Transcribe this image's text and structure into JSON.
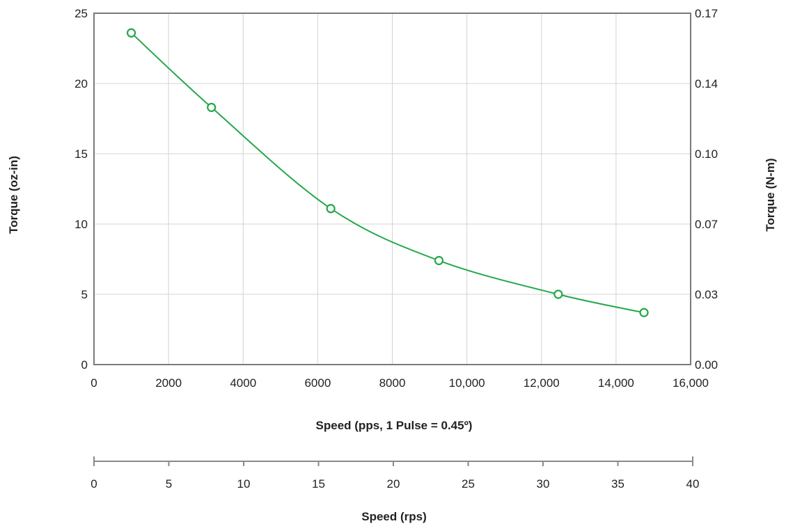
{
  "chart_data": {
    "type": "line",
    "xlabel": "Speed (pps, 1 Pulse = 0.45º)",
    "ylabel": "Torque (oz-in)",
    "ylabel_right": "Torque (N-m)",
    "xlim": [
      0,
      16000
    ],
    "ylim": [
      0,
      25
    ],
    "x_ticks": [
      "0",
      "2000",
      "4000",
      "6000",
      "8000",
      "10,000",
      "12,000",
      "14,000",
      "16,000"
    ],
    "y_ticks": [
      "0",
      "5",
      "10",
      "15",
      "20",
      "25"
    ],
    "y_right_ticks": [
      "0.00",
      "0.03",
      "0.07",
      "0.10",
      "0.14",
      "0.17"
    ],
    "secondary_x": {
      "label": "Speed (rps)",
      "range": [
        0,
        40
      ],
      "ticks": [
        "0",
        "5",
        "10",
        "15",
        "20",
        "25",
        "30",
        "35",
        "40"
      ]
    },
    "grid": true,
    "line_color": "#22a84a",
    "series": [
      {
        "x": [
          1000,
          3150,
          6350,
          9250,
          12450,
          14750
        ],
        "y": [
          23.6,
          18.3,
          11.1,
          7.4,
          5.0,
          3.7
        ]
      }
    ]
  }
}
